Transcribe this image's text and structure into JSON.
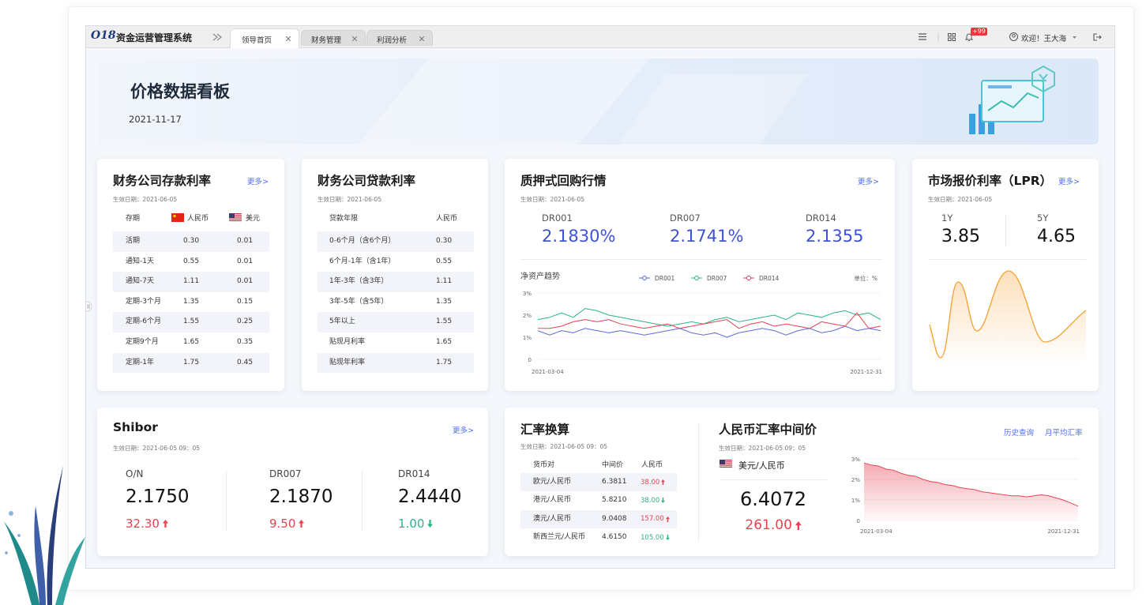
{
  "topbar": {
    "logo": "O18",
    "system_name": "资金运营管理系统",
    "tabs": [
      "领导首页",
      "财务管理",
      "利润分析"
    ],
    "badge": "+99",
    "welcome": "欢迎！王大海"
  },
  "banner": {
    "title": "价格数据看板",
    "date": "2021-11-17"
  },
  "deposit": {
    "title": "财务公司存款利率",
    "more": "更多>",
    "effective": "生效日期：2021-06-05",
    "header": [
      "存期",
      "人民币",
      "美元"
    ],
    "rows": [
      [
        "活期",
        "0.30",
        "0.01"
      ],
      [
        "通知-1天",
        "0.55",
        "0.01"
      ],
      [
        "通知-7天",
        "1.11",
        "0.01"
      ],
      [
        "定期-3个月",
        "1.35",
        "0.15"
      ],
      [
        "定期-6个月",
        "1.55",
        "0.25"
      ],
      [
        "定期9个月",
        "1.65",
        "0.35"
      ],
      [
        "定期-1年",
        "1.75",
        "0.45"
      ]
    ]
  },
  "loan": {
    "title": "财务公司贷款利率",
    "effective": "生效日期：2021-06-05",
    "header": [
      "贷款年限",
      "人民币"
    ],
    "rows": [
      [
        "0-6个月（含6个月）",
        "0.30"
      ],
      [
        "6个月-1年（含1年）",
        "0.55"
      ],
      [
        "1年-3年（含3年）",
        "1.11"
      ],
      [
        "3年-5年（含5年）",
        "1.35"
      ],
      [
        "5年以上",
        "1.55"
      ],
      [
        "贴现月利率",
        "1.65"
      ],
      [
        "贴现年利率",
        "1.75"
      ]
    ]
  },
  "repo": {
    "title": "质押式回购行情",
    "more": "更多>",
    "effective": "生效日期：2021-06-05",
    "quotes": [
      {
        "name": "DR001",
        "value": "2.1830%"
      },
      {
        "name": "DR007",
        "value": "2.1741%"
      },
      {
        "name": "DR014",
        "value": "2.1355"
      }
    ],
    "chart": {
      "type": "line",
      "title": "净资产趋势",
      "unit": "单位：%",
      "categories": [
        "2021-03-04",
        null,
        null,
        null,
        null,
        null,
        null,
        null,
        null,
        null,
        null,
        null,
        null,
        null,
        null,
        null,
        null,
        null,
        null,
        null,
        null,
        null,
        null,
        null,
        null,
        null,
        null,
        null,
        null,
        "2021-12-31"
      ],
      "series": [
        {
          "name": "DR001",
          "color": "#5b6bd8",
          "values": [
            1.3,
            1.1,
            1.3,
            1.2,
            1.4,
            1.3,
            1.2,
            1.3,
            1.2,
            1.1,
            1.2,
            1.3,
            1.4,
            1.2,
            1.1,
            1.2,
            1.0,
            1.2,
            1.3,
            1.4,
            1.3,
            1.1,
            1.3,
            1.4,
            1.2,
            1.3,
            1.5,
            1.3,
            1.4,
            1.3
          ]
        },
        {
          "name": "DR007",
          "color": "#2bb48a",
          "values": [
            1.8,
            1.9,
            2.1,
            1.9,
            2.3,
            2.2,
            2.0,
            1.9,
            1.8,
            1.7,
            1.6,
            1.5,
            1.6,
            1.7,
            1.6,
            1.8,
            1.9,
            1.7,
            1.8,
            1.9,
            2.0,
            1.8,
            2.1,
            2.0,
            1.9,
            2.1,
            2.2,
            2.0,
            2.1,
            1.8
          ]
        },
        {
          "name": "DR014",
          "color": "#e8414f",
          "values": [
            1.4,
            1.4,
            1.5,
            1.7,
            1.8,
            1.7,
            1.8,
            1.6,
            1.5,
            1.4,
            1.5,
            1.6,
            1.4,
            1.5,
            1.6,
            1.7,
            1.8,
            1.4,
            1.6,
            1.7,
            1.5,
            1.6,
            1.5,
            1.4,
            1.7,
            1.6,
            1.5,
            2.1,
            1.4,
            1.5
          ]
        }
      ],
      "ylim": [
        0,
        3
      ],
      "yticks": [
        0,
        {
          "value": 1,
          "label": "1%"
        },
        {
          "value": 2,
          "label": "2%"
        },
        {
          "value": 3,
          "label": "3%"
        }
      ]
    }
  },
  "lpr": {
    "title": "市场报价利率（LPR）",
    "more": "更多>",
    "effective": "生效日期：2021-06-05",
    "quotes": [
      {
        "name": "1Y",
        "value": "3.85"
      },
      {
        "name": "5Y",
        "value": "4.65"
      }
    ]
  },
  "shibor": {
    "title": "Shibor",
    "more": "更多>",
    "effective": "生效日期：2021-06-05  09：05",
    "items": [
      {
        "name": "O/N",
        "value": "2.1750",
        "change": "32.30",
        "dir": "up"
      },
      {
        "name": "DR007",
        "value": "2.1870",
        "change": "9.50",
        "dir": "up"
      },
      {
        "name": "DR014",
        "value": "2.4440",
        "change": "1.00",
        "dir": "down"
      }
    ]
  },
  "fx": {
    "title": "汇率换算",
    "effective": "生效日期：2021-06-05  09：05",
    "header": [
      "货币对",
      "中间价",
      "人民币"
    ],
    "rows": [
      {
        "pair": "欧元/人民币",
        "mid": "6.3811",
        "rmb": "38.00",
        "dir": "up"
      },
      {
        "pair": "港元/人民币",
        "mid": "5.8210",
        "rmb": "38.00",
        "dir": "down"
      },
      {
        "pair": "澳元/人民币",
        "mid": "9.0408",
        "rmb": "157.00",
        "dir": "up"
      },
      {
        "pair": "新西兰元/人民币",
        "mid": "4.6150",
        "rmb": "105.00",
        "dir": "down"
      }
    ]
  },
  "rmb": {
    "title": "人民币汇率中间价",
    "links": [
      "历史查询",
      "月平均汇率"
    ],
    "effective": "生效日期：2021-06-05  09：05",
    "currency": "美元/人民币",
    "value": "6.4072",
    "change": "261.00",
    "dir": "up",
    "chart": {
      "type": "area",
      "color": "#e64553",
      "categories": [
        "2021-03-04",
        null,
        null,
        null,
        null,
        null,
        null,
        null,
        null,
        null,
        null,
        null,
        null,
        null,
        null,
        null,
        null,
        null,
        null,
        null,
        null,
        null,
        null,
        null,
        null,
        null,
        null,
        null,
        null,
        "2021-12-31"
      ],
      "values": [
        2.8,
        2.7,
        2.65,
        2.5,
        2.45,
        2.3,
        2.2,
        2.15,
        2.0,
        1.9,
        1.85,
        1.75,
        1.7,
        1.6,
        1.55,
        1.5,
        1.4,
        1.35,
        1.3,
        1.25,
        1.2,
        1.2,
        1.15,
        1.2,
        1.25,
        1.2,
        1.1,
        1.0,
        0.85,
        0.7
      ],
      "ylim": [
        0,
        3
      ],
      "yticks": [
        0,
        {
          "value": 1,
          "label": "1%"
        },
        {
          "value": 2,
          "label": "2%"
        },
        {
          "value": 3,
          "label": "3%"
        }
      ]
    }
  }
}
